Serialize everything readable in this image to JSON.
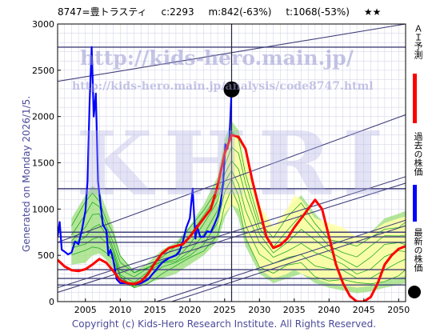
{
  "header": {
    "code_name": "8747=豊トラスティ",
    "current": "c:2293",
    "max": "m:842(-63%)",
    "target": "t:1068(-53%)",
    "stars": "★★"
  },
  "footer": "Copyright (c) Kids-Hero Research Institute. All Rights Reserved.",
  "generated": "Generated on Monday 2026/1/5.",
  "watermarks": {
    "url": "http://kids-hero.main.jp/",
    "analysis_url": "http://kids-hero.main.jp/analysis/code8747.html",
    "big": "KHRI"
  },
  "legend": [
    {
      "label": "ＡＩ予測",
      "color": "#ff0000"
    },
    {
      "label": "過去の株価",
      "color": "#0000ff"
    },
    {
      "label": "最新の株価",
      "color": "#000000"
    }
  ],
  "colors": {
    "ai_prediction": "#ff0000",
    "past_price": "#0000ff",
    "latest_marker": "#000000",
    "forecast_band_fill": "#99dd77",
    "forecast_lines": "#22aa22",
    "yellow_fill": "#ffffaa",
    "trend_lines": "#40407a",
    "grid": "#cfcfe8"
  },
  "chart_data": {
    "type": "line",
    "xlim": [
      2001,
      2051
    ],
    "ylim": [
      0,
      3000
    ],
    "x_ticks": [
      2005,
      2010,
      2015,
      2020,
      2025,
      2030,
      2035,
      2040,
      2045,
      2050
    ],
    "y_ticks": [
      0,
      500,
      1000,
      1500,
      2000,
      2500,
      3000
    ],
    "grid": true,
    "latest_point": {
      "x": 2026.0,
      "y": 2293
    },
    "current_date_line": 2026.0,
    "horizontal_levels": [
      2750,
      1220,
      750,
      700,
      640,
      345,
      250,
      180
    ],
    "trend_lines": [
      {
        "x": [
          2001,
          2051
        ],
        "y": [
          2380,
          3000
        ]
      },
      {
        "x": [
          2001,
          2051
        ],
        "y": [
          640,
          2020
        ]
      },
      {
        "x": [
          2001,
          2051
        ],
        "y": [
          150,
          1350
        ]
      },
      {
        "x": [
          2001,
          2051
        ],
        "y": [
          100,
          1280
        ]
      },
      {
        "x": [
          2001,
          2051
        ],
        "y": [
          -350,
          880
        ]
      },
      {
        "x": [
          2001,
          2051
        ],
        "y": [
          -400,
          820
        ]
      }
    ],
    "series": [
      {
        "name": "過去の株価",
        "color": "#0000ff",
        "x": [
          2001,
          2001.3,
          2001.6,
          2002,
          2002.5,
          2003,
          2003.5,
          2004,
          2004.5,
          2005,
          2005.3,
          2005.6,
          2005.9,
          2006.2,
          2006.5,
          2006.8,
          2007.1,
          2007.5,
          2008,
          2008.3,
          2008.6,
          2009,
          2009.5,
          2010,
          2011,
          2012,
          2013,
          2014,
          2015,
          2016,
          2017,
          2018,
          2018.5,
          2019,
          2019.5,
          2020,
          2020.4,
          2020.8,
          2021,
          2021.5,
          2022,
          2022.5,
          2023,
          2023.5,
          2024,
          2024.4,
          2024.8,
          2025.1,
          2025.4,
          2025.7,
          2026.0
        ],
        "y": [
          700,
          860,
          560,
          540,
          510,
          530,
          650,
          620,
          780,
          980,
          1300,
          2150,
          2750,
          2000,
          2250,
          1300,
          1100,
          830,
          770,
          500,
          560,
          450,
          240,
          200,
          200,
          190,
          200,
          240,
          330,
          420,
          470,
          500,
          540,
          650,
          800,
          900,
          1220,
          680,
          820,
          700,
          700,
          760,
          750,
          830,
          920,
          1050,
          1300,
          1700,
          1650,
          1780,
          2293
        ]
      },
      {
        "name": "ＡＩ予測",
        "color": "#ff0000",
        "x": [
          2001,
          2002,
          2003,
          2004,
          2005,
          2006,
          2007,
          2008,
          2009,
          2010,
          2011,
          2012,
          2013,
          2014,
          2015,
          2016,
          2017,
          2018,
          2019,
          2020,
          2021,
          2022,
          2023,
          2024,
          2025,
          2026,
          2027,
          2028,
          2029,
          2030,
          2031,
          2032,
          2033,
          2034,
          2035,
          2036,
          2037,
          2038,
          2039,
          2040,
          2041,
          2042,
          2043,
          2044,
          2045,
          2046,
          2047,
          2048,
          2049,
          2050,
          2051
        ],
        "y": [
          450,
          380,
          340,
          330,
          350,
          400,
          460,
          420,
          330,
          230,
          200,
          190,
          220,
          300,
          420,
          520,
          580,
          600,
          620,
          700,
          800,
          900,
          1000,
          1250,
          1600,
          1800,
          1780,
          1650,
          1300,
          1000,
          700,
          580,
          610,
          680,
          800,
          900,
          1000,
          1100,
          1000,
          700,
          400,
          200,
          60,
          0,
          0,
          50,
          200,
          400,
          500,
          570,
          600
        ]
      }
    ],
    "forecast_band": {
      "x": [
        2003,
        2005,
        2006,
        2007,
        2008,
        2009,
        2010,
        2012,
        2014,
        2016,
        2018,
        2020,
        2022,
        2024,
        2025,
        2026,
        2027,
        2028,
        2030,
        2032,
        2034,
        2036,
        2038,
        2040,
        2042,
        2044,
        2046,
        2048,
        2050,
        2051
      ],
      "upper": [
        900,
        1150,
        1250,
        1200,
        1000,
        800,
        500,
        320,
        420,
        560,
        640,
        820,
        1050,
        1350,
        1750,
        1950,
        1850,
        1500,
        1000,
        800,
        1000,
        1150,
        950,
        800,
        750,
        650,
        750,
        900,
        950,
        980
      ],
      "lower": [
        400,
        420,
        500,
        520,
        450,
        350,
        200,
        150,
        200,
        250,
        300,
        400,
        500,
        650,
        900,
        1050,
        900,
        600,
        300,
        200,
        250,
        300,
        200,
        150,
        120,
        90,
        110,
        150,
        180,
        200
      ]
    },
    "yellow_band": {
      "x": [
        2024,
        2025,
        2026,
        2027,
        2028,
        2030,
        2032,
        2034,
        2035,
        2036,
        2038,
        2040,
        2042,
        2044,
        2046,
        2048,
        2050,
        2051
      ],
      "upper": [
        1200,
        1580,
        1800,
        1760,
        1550,
        1050,
        800,
        1000,
        1150,
        1100,
        900,
        850,
        800,
        700,
        750,
        850,
        900,
        920
      ],
      "lower": [
        800,
        950,
        1050,
        1000,
        700,
        350,
        250,
        300,
        350,
        300,
        250,
        200,
        180,
        150,
        170,
        220,
        260,
        280
      ]
    }
  }
}
